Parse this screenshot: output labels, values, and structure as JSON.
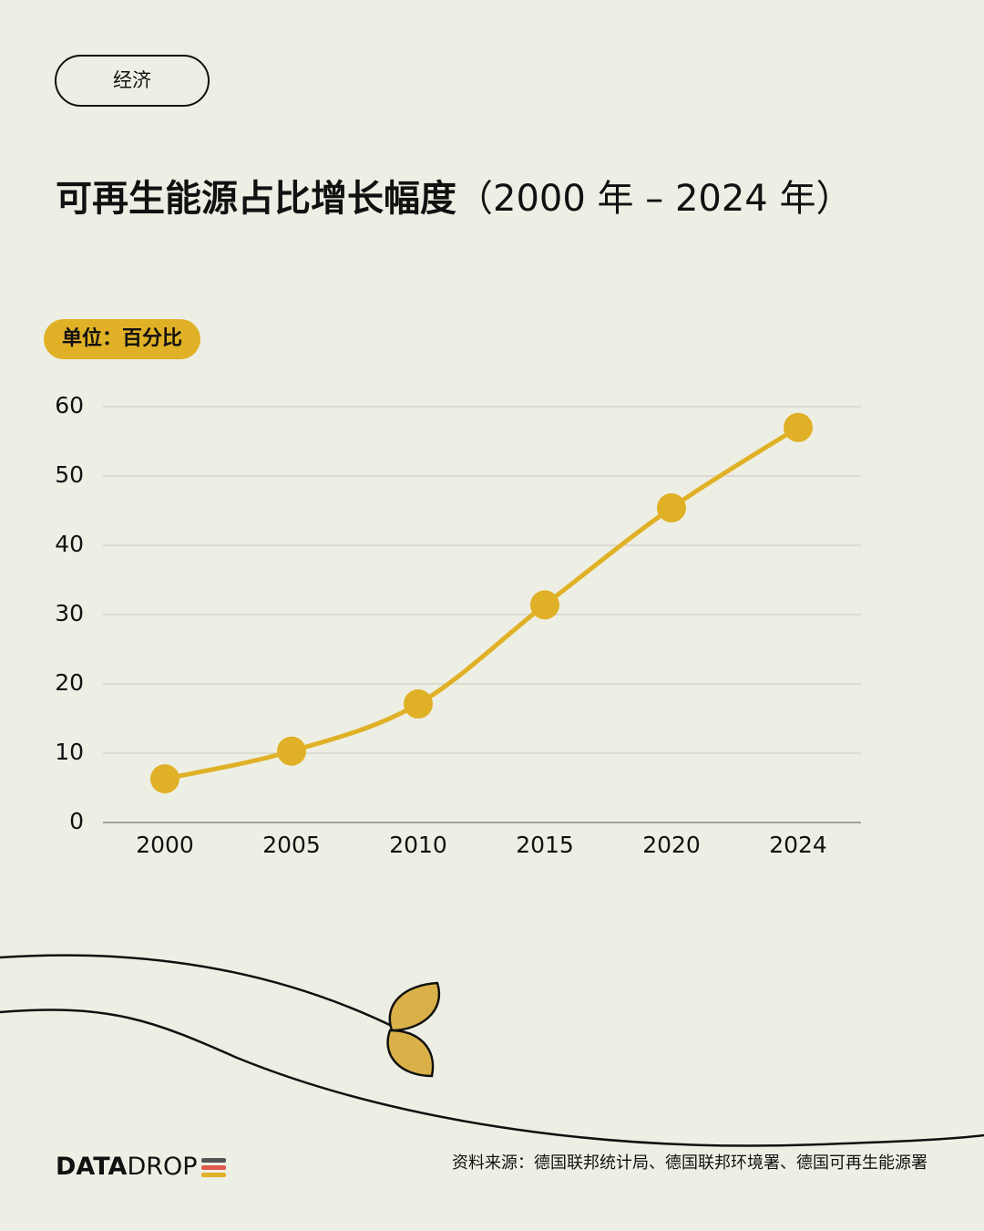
{
  "tag": "经济",
  "chart_data": {
    "type": "line",
    "title": "可再生能源占比增长幅度",
    "subtitle": "（2000 年 – 2024 年）",
    "unit_label": "单位：百分比",
    "categories": [
      "2000",
      "2005",
      "2010",
      "2015",
      "2020",
      "2024"
    ],
    "values": [
      6.3,
      10.3,
      17.1,
      31.4,
      45.4,
      57.0
    ],
    "color": "#e0b126",
    "ylim": [
      0,
      60
    ],
    "yticks": [
      0,
      10,
      20,
      30,
      40,
      50,
      60
    ],
    "grid": true
  },
  "footer": {
    "brand_bold": "DATA",
    "brand_regular": "DROP",
    "source": "资料来源：德国联邦统计局、德国联邦环境署、德国可再生能源署"
  }
}
